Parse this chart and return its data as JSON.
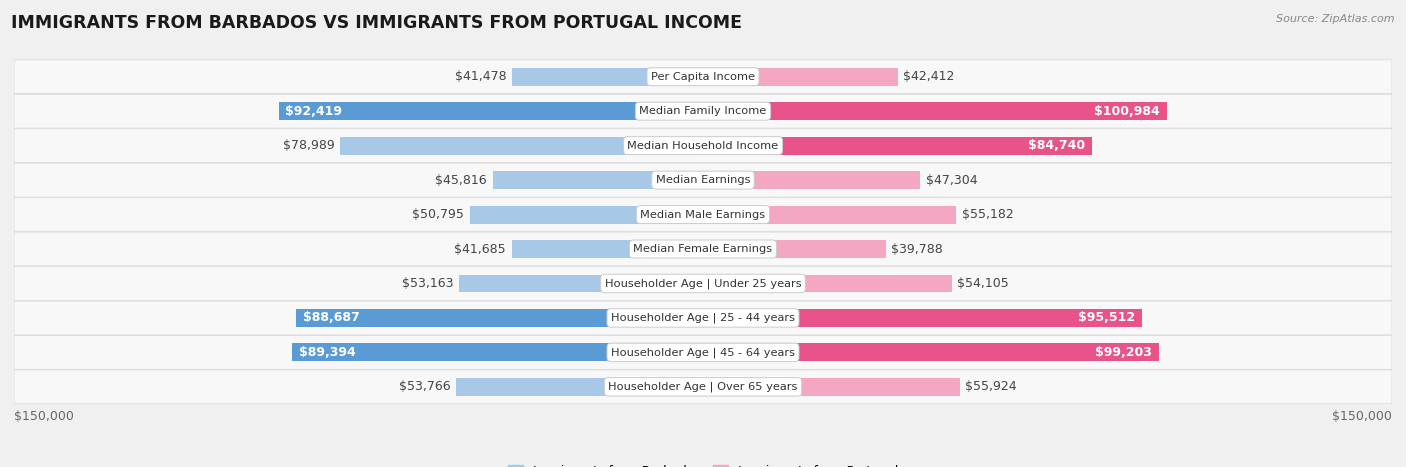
{
  "title": "IMMIGRANTS FROM BARBADOS VS IMMIGRANTS FROM PORTUGAL INCOME",
  "source": "Source: ZipAtlas.com",
  "categories": [
    "Per Capita Income",
    "Median Family Income",
    "Median Household Income",
    "Median Earnings",
    "Median Male Earnings",
    "Median Female Earnings",
    "Householder Age | Under 25 years",
    "Householder Age | 25 - 44 years",
    "Householder Age | 45 - 64 years",
    "Householder Age | Over 65 years"
  ],
  "barbados_values": [
    41478,
    92419,
    78989,
    45816,
    50795,
    41685,
    53163,
    88687,
    89394,
    53766
  ],
  "portugal_values": [
    42412,
    100984,
    84740,
    47304,
    55182,
    39788,
    54105,
    95512,
    99203,
    55924
  ],
  "barbados_labels": [
    "$41,478",
    "$92,419",
    "$78,989",
    "$45,816",
    "$50,795",
    "$41,685",
    "$53,163",
    "$88,687",
    "$89,394",
    "$53,766"
  ],
  "portugal_labels": [
    "$42,412",
    "$100,984",
    "$84,740",
    "$47,304",
    "$55,182",
    "$39,788",
    "$54,105",
    "$95,512",
    "$99,203",
    "$55,924"
  ],
  "barbados_color_light": "#a8c8e8",
  "barbados_color_dark": "#5b9bd5",
  "portugal_color_light": "#f4a7c3",
  "portugal_color_dark": "#e8538a",
  "max_value": 150000,
  "legend_barbados": "Immigrants from Barbados",
  "legend_portugal": "Immigrants from Portugal",
  "xlabel_left": "$150,000",
  "xlabel_right": "$150,000",
  "bg_color": "#f0f0f0",
  "row_bg_color": "#f8f8f8",
  "bar_height": 0.52,
  "label_fontsize": 9.0,
  "title_fontsize": 12.5,
  "category_fontsize": 8.2,
  "dark_threshold": 0.56
}
